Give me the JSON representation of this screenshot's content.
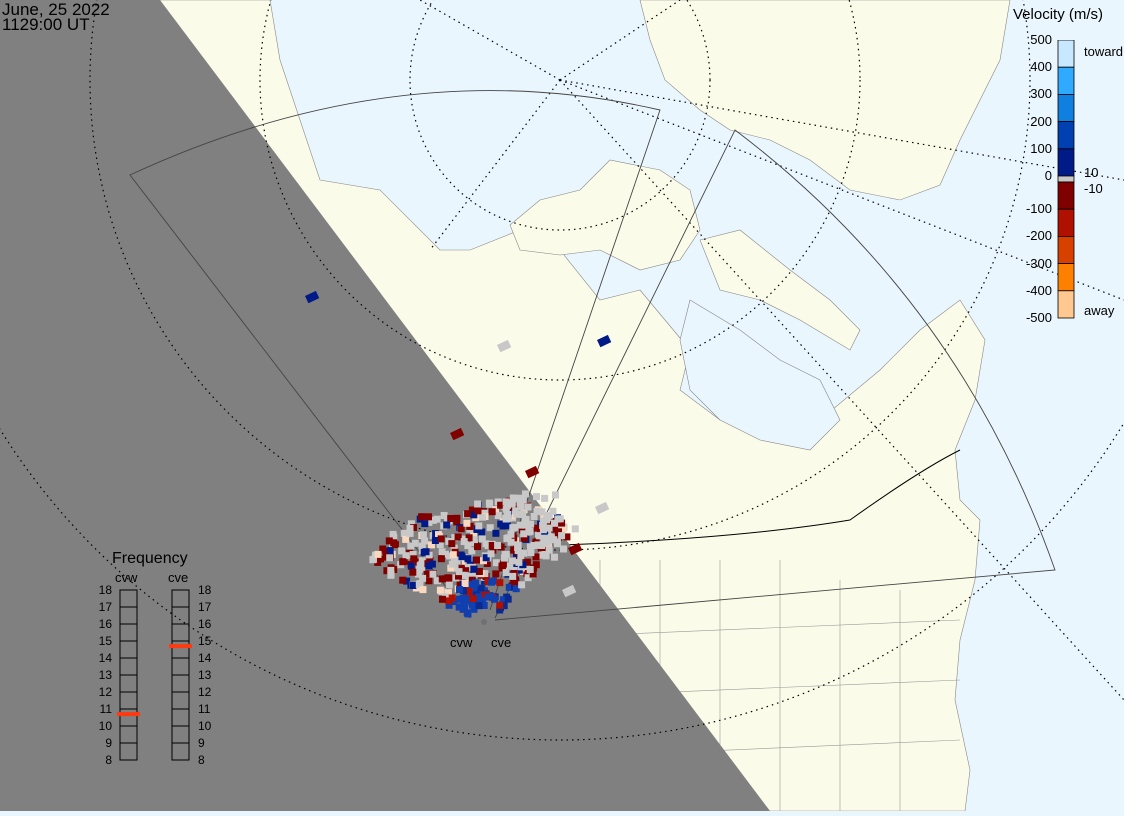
{
  "header": {
    "date": "June, 25 2022",
    "time": "1129:00 UT"
  },
  "colorbar": {
    "title": "Velocity (m/s)",
    "ticks": [
      "500",
      "400",
      "300",
      "200",
      "100",
      "0",
      "-100",
      "-200",
      "-300",
      "-400",
      "-500"
    ],
    "toward_label": "toward",
    "away_label": "away",
    "gs_upper": "10",
    "gs_lower": "-10",
    "colors": [
      "#c8e8ff",
      "#30aaff",
      "#1080e0",
      "#0040b0",
      "#001a88",
      "#c8c8c8",
      "#800000",
      "#b01000",
      "#d84000",
      "#ff8000",
      "#ffc890"
    ]
  },
  "radars": [
    {
      "name": "cvw",
      "label": "cvw",
      "frequency_mhz": 10.7
    },
    {
      "name": "cve",
      "label": "cve",
      "frequency_mhz": 14.7
    }
  ],
  "frequency_panel": {
    "title": "Frequency",
    "scale_min": 8,
    "scale_max": 18,
    "ticks": [
      "18",
      "17",
      "16",
      "15",
      "14",
      "13",
      "12",
      "11",
      "10",
      "9",
      "8"
    ],
    "marker_color": "#ff3a10"
  },
  "map": {
    "ocean_color": "#eaf6fd",
    "land_color": "#fbfbe9",
    "night_color": "#808080",
    "ground_scatter_color": "#c8c8c8"
  }
}
